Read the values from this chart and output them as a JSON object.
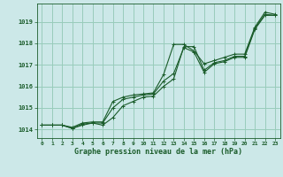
{
  "background_color": "#cce8e8",
  "grid_color": "#99ccbb",
  "line_color": "#1a5c2a",
  "title": "Graphe pression niveau de la mer (hPa)",
  "xlim": [
    -0.5,
    23.5
  ],
  "ylim": [
    1013.6,
    1019.85
  ],
  "yticks": [
    1014,
    1015,
    1016,
    1017,
    1018,
    1019
  ],
  "xticks": [
    0,
    1,
    2,
    3,
    4,
    5,
    6,
    7,
    8,
    9,
    10,
    11,
    12,
    13,
    14,
    15,
    16,
    17,
    18,
    19,
    20,
    21,
    22,
    23
  ],
  "series": [
    [
      1014.2,
      1014.2,
      1014.2,
      1014.1,
      1014.3,
      1014.35,
      1014.35,
      1015.3,
      1015.5,
      1015.6,
      1015.65,
      1015.7,
      1016.55,
      1017.95,
      1017.95,
      1017.65,
      1017.05,
      1017.2,
      1017.35,
      1017.5,
      1017.5,
      1018.75,
      1019.45,
      1019.35
    ],
    [
      1014.2,
      1014.2,
      1014.2,
      1014.05,
      1014.25,
      1014.3,
      1014.2,
      1014.55,
      1015.1,
      1015.3,
      1015.5,
      1015.55,
      1016.0,
      1016.35,
      1017.85,
      1017.85,
      1016.75,
      1017.1,
      1017.2,
      1017.4,
      1017.4,
      1018.7,
      1019.35,
      1019.3
    ],
    [
      1014.2,
      1014.2,
      1014.2,
      1014.05,
      1014.2,
      1014.3,
      1014.3,
      1015.0,
      1015.4,
      1015.5,
      1015.6,
      1015.65,
      1016.25,
      1016.6,
      1017.8,
      1017.6,
      1016.65,
      1017.05,
      1017.15,
      1017.35,
      1017.35,
      1018.65,
      1019.3,
      1019.3
    ]
  ]
}
